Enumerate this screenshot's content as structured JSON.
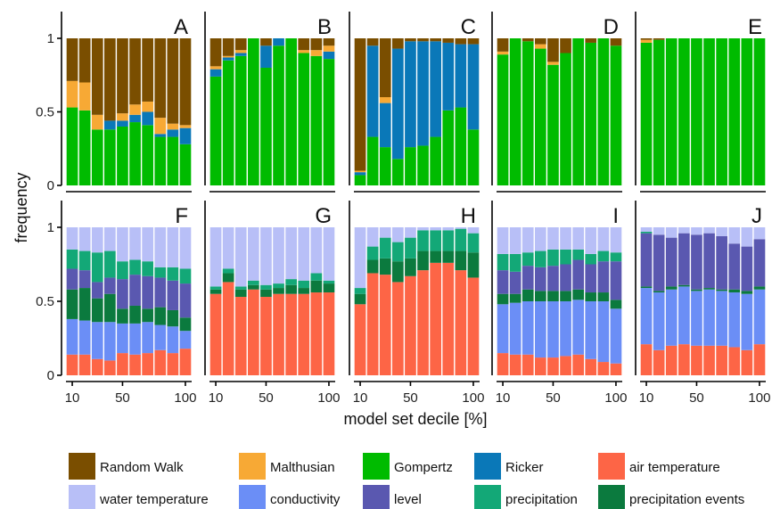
{
  "chart_data": {
    "type": "bar",
    "stacked": true,
    "ylabel": "frequency",
    "xlabel": "model set decile [%]",
    "x": [
      10,
      20,
      30,
      40,
      50,
      60,
      70,
      80,
      90,
      100
    ],
    "x_tick_labels": [
      "10",
      "50",
      "100"
    ],
    "y_tick_labels": [
      "0",
      "0.5",
      "1"
    ],
    "ylim": [
      0,
      1
    ],
    "grid": false,
    "legend_position": "bottom",
    "colors": {
      "Random Walk": "#7a4e00",
      "Malthusian": "#f7a935",
      "Gompertz": "#00bb00",
      "Ricker": "#0a78b8",
      "air temperature": "#fd6546",
      "water temperature": "#b8bff7",
      "conductivity": "#6b8ef6",
      "level": "#5a58b0",
      "precipitation": "#13a877",
      "precipitation events": "#0b7a3e"
    },
    "legend": [
      "Random Walk",
      "Malthusian",
      "Gompertz",
      "Ricker",
      "air temperature",
      "water temperature",
      "conductivity",
      "level",
      "precipitation",
      "precipitation events"
    ],
    "panels": [
      {
        "label": "A",
        "row": 0,
        "series": [
          {
            "name": "Gompertz",
            "values": [
              0.53,
              0.51,
              0.38,
              0.38,
              0.4,
              0.43,
              0.41,
              0.33,
              0.33,
              0.28
            ]
          },
          {
            "name": "Ricker",
            "values": [
              0.0,
              0.0,
              0.0,
              0.06,
              0.04,
              0.05,
              0.09,
              0.02,
              0.05,
              0.11
            ]
          },
          {
            "name": "Malthusian",
            "values": [
              0.18,
              0.19,
              0.1,
              0.0,
              0.05,
              0.07,
              0.07,
              0.11,
              0.04,
              0.02
            ]
          },
          {
            "name": "Random Walk",
            "values": [
              0.29,
              0.3,
              0.52,
              0.56,
              0.51,
              0.45,
              0.43,
              0.54,
              0.58,
              0.59
            ]
          }
        ]
      },
      {
        "label": "B",
        "row": 0,
        "series": [
          {
            "name": "Gompertz",
            "values": [
              0.74,
              0.85,
              0.88,
              1.0,
              0.8,
              0.95,
              1.0,
              0.9,
              0.88,
              0.86
            ]
          },
          {
            "name": "Ricker",
            "values": [
              0.05,
              0.02,
              0.02,
              0.0,
              0.15,
              0.05,
              0.0,
              0.0,
              0.0,
              0.05
            ]
          },
          {
            "name": "Malthusian",
            "values": [
              0.02,
              0.01,
              0.02,
              0.0,
              0.0,
              0.0,
              0.0,
              0.02,
              0.04,
              0.04
            ]
          },
          {
            "name": "Random Walk",
            "values": [
              0.19,
              0.12,
              0.08,
              0.0,
              0.05,
              0.0,
              0.0,
              0.08,
              0.08,
              0.05
            ]
          }
        ]
      },
      {
        "label": "C",
        "row": 0,
        "series": [
          {
            "name": "Gompertz",
            "values": [
              0.07,
              0.33,
              0.26,
              0.18,
              0.26,
              0.27,
              0.33,
              0.51,
              0.53,
              0.38
            ]
          },
          {
            "name": "Ricker",
            "values": [
              0.02,
              0.62,
              0.3,
              0.75,
              0.72,
              0.71,
              0.65,
              0.46,
              0.43,
              0.58
            ]
          },
          {
            "name": "Malthusian",
            "values": [
              0.01,
              0.0,
              0.04,
              0.0,
              0.0,
              0.0,
              0.0,
              0.0,
              0.0,
              0.0
            ]
          },
          {
            "name": "Random Walk",
            "values": [
              0.9,
              0.05,
              0.4,
              0.07,
              0.02,
              0.02,
              0.02,
              0.03,
              0.04,
              0.04
            ]
          }
        ]
      },
      {
        "label": "D",
        "row": 0,
        "series": [
          {
            "name": "Gompertz",
            "values": [
              0.89,
              1.0,
              0.98,
              0.93,
              0.82,
              0.9,
              1.0,
              0.97,
              1.0,
              0.95
            ]
          },
          {
            "name": "Ricker",
            "values": [
              0,
              0,
              0,
              0,
              0,
              0,
              0,
              0,
              0,
              0
            ]
          },
          {
            "name": "Malthusian",
            "values": [
              0.02,
              0.0,
              0.0,
              0.03,
              0.02,
              0.0,
              0.0,
              0.0,
              0.0,
              0.0
            ]
          },
          {
            "name": "Random Walk",
            "values": [
              0.09,
              0.0,
              0.02,
              0.04,
              0.16,
              0.1,
              0.0,
              0.03,
              0.0,
              0.05
            ]
          }
        ]
      },
      {
        "label": "E",
        "row": 0,
        "series": [
          {
            "name": "Gompertz",
            "values": [
              0.97,
              0.99,
              1.0,
              1.0,
              1.0,
              1.0,
              1.0,
              1.0,
              1.0,
              1.0
            ]
          },
          {
            "name": "Ricker",
            "values": [
              0,
              0,
              0,
              0,
              0,
              0,
              0,
              0,
              0,
              0
            ]
          },
          {
            "name": "Malthusian",
            "values": [
              0.02,
              0.0,
              0.0,
              0.0,
              0.0,
              0.0,
              0.0,
              0.0,
              0.0,
              0.0
            ]
          },
          {
            "name": "Random Walk",
            "values": [
              0.01,
              0.01,
              0.0,
              0.0,
              0.0,
              0.0,
              0.0,
              0.0,
              0.0,
              0.0
            ]
          }
        ]
      },
      {
        "label": "F",
        "row": 1,
        "series": [
          {
            "name": "air temperature",
            "values": [
              0.14,
              0.14,
              0.11,
              0.1,
              0.15,
              0.14,
              0.15,
              0.17,
              0.15,
              0.18
            ]
          },
          {
            "name": "conductivity",
            "values": [
              0.24,
              0.23,
              0.25,
              0.26,
              0.2,
              0.21,
              0.21,
              0.17,
              0.18,
              0.12
            ]
          },
          {
            "name": "precipitation events",
            "values": [
              0.2,
              0.22,
              0.16,
              0.19,
              0.1,
              0.12,
              0.09,
              0.12,
              0.11,
              0.09
            ]
          },
          {
            "name": "level",
            "values": [
              0.14,
              0.12,
              0.11,
              0.11,
              0.2,
              0.21,
              0.22,
              0.2,
              0.2,
              0.23
            ]
          },
          {
            "name": "precipitation",
            "values": [
              0.13,
              0.13,
              0.2,
              0.18,
              0.12,
              0.1,
              0.1,
              0.07,
              0.09,
              0.1
            ]
          },
          {
            "name": "water temperature",
            "values": [
              0.15,
              0.16,
              0.17,
              0.16,
              0.23,
              0.22,
              0.23,
              0.27,
              0.27,
              0.28
            ]
          }
        ]
      },
      {
        "label": "G",
        "row": 1,
        "series": [
          {
            "name": "air temperature",
            "values": [
              0.55,
              0.63,
              0.53,
              0.58,
              0.53,
              0.55,
              0.55,
              0.55,
              0.56,
              0.56
            ]
          },
          {
            "name": "conductivity",
            "values": [
              0,
              0,
              0,
              0,
              0,
              0,
              0,
              0,
              0,
              0
            ]
          },
          {
            "name": "precipitation events",
            "values": [
              0.03,
              0.06,
              0.05,
              0.03,
              0.05,
              0.04,
              0.06,
              0.04,
              0.08,
              0.06
            ]
          },
          {
            "name": "level",
            "values": [
              0,
              0,
              0,
              0,
              0,
              0,
              0,
              0,
              0,
              0
            ]
          },
          {
            "name": "precipitation",
            "values": [
              0.02,
              0.03,
              0.02,
              0.03,
              0.03,
              0.03,
              0.04,
              0.05,
              0.05,
              0.02
            ]
          },
          {
            "name": "water temperature",
            "values": [
              0.4,
              0.28,
              0.4,
              0.36,
              0.39,
              0.38,
              0.35,
              0.36,
              0.31,
              0.36
            ]
          }
        ]
      },
      {
        "label": "H",
        "row": 1,
        "series": [
          {
            "name": "air temperature",
            "values": [
              0.48,
              0.69,
              0.68,
              0.63,
              0.67,
              0.71,
              0.76,
              0.76,
              0.71,
              0.66
            ]
          },
          {
            "name": "conductivity",
            "values": [
              0,
              0,
              0,
              0,
              0,
              0,
              0,
              0,
              0,
              0
            ]
          },
          {
            "name": "precipitation events",
            "values": [
              0.07,
              0.09,
              0.11,
              0.14,
              0.12,
              0.13,
              0.08,
              0.08,
              0.13,
              0.17
            ]
          },
          {
            "name": "level",
            "values": [
              0,
              0,
              0,
              0,
              0,
              0,
              0,
              0,
              0,
              0
            ]
          },
          {
            "name": "precipitation",
            "values": [
              0.04,
              0.09,
              0.14,
              0.13,
              0.14,
              0.14,
              0.14,
              0.14,
              0.15,
              0.13
            ]
          },
          {
            "name": "water temperature",
            "values": [
              0.41,
              0.13,
              0.07,
              0.1,
              0.07,
              0.02,
              0.02,
              0.02,
              0.01,
              0.04
            ]
          }
        ]
      },
      {
        "label": "I",
        "row": 1,
        "series": [
          {
            "name": "air temperature",
            "values": [
              0.15,
              0.14,
              0.14,
              0.12,
              0.12,
              0.13,
              0.14,
              0.11,
              0.09,
              0.08
            ]
          },
          {
            "name": "conductivity",
            "values": [
              0.33,
              0.35,
              0.36,
              0.38,
              0.38,
              0.37,
              0.37,
              0.39,
              0.41,
              0.37
            ]
          },
          {
            "name": "precipitation events",
            "values": [
              0.07,
              0.06,
              0.08,
              0.07,
              0.07,
              0.07,
              0.07,
              0.06,
              0.06,
              0.06
            ]
          },
          {
            "name": "level",
            "values": [
              0.16,
              0.15,
              0.16,
              0.16,
              0.17,
              0.18,
              0.2,
              0.19,
              0.21,
              0.26
            ]
          },
          {
            "name": "precipitation",
            "values": [
              0.11,
              0.12,
              0.09,
              0.11,
              0.11,
              0.1,
              0.07,
              0.07,
              0.07,
              0.06
            ]
          },
          {
            "name": "water temperature",
            "values": [
              0.18,
              0.18,
              0.17,
              0.16,
              0.15,
              0.15,
              0.15,
              0.18,
              0.16,
              0.17
            ]
          }
        ]
      },
      {
        "label": "J",
        "row": 1,
        "series": [
          {
            "name": "air temperature",
            "values": [
              0.21,
              0.17,
              0.2,
              0.21,
              0.2,
              0.2,
              0.2,
              0.19,
              0.17,
              0.21
            ]
          },
          {
            "name": "conductivity",
            "values": [
              0.38,
              0.39,
              0.38,
              0.39,
              0.37,
              0.38,
              0.37,
              0.37,
              0.38,
              0.37
            ]
          },
          {
            "name": "precipitation events",
            "values": [
              0.01,
              0.01,
              0.02,
              0.01,
              0.01,
              0.01,
              0.01,
              0.02,
              0.02,
              0.02
            ]
          },
          {
            "name": "level",
            "values": [
              0.36,
              0.38,
              0.33,
              0.35,
              0.37,
              0.37,
              0.36,
              0.31,
              0.3,
              0.32
            ]
          },
          {
            "name": "precipitation",
            "values": [
              0.01,
              0.0,
              0.0,
              0.0,
              0.0,
              0.0,
              0.0,
              0.0,
              0.0,
              0.0
            ]
          },
          {
            "name": "water temperature",
            "values": [
              0.03,
              0.05,
              0.07,
              0.04,
              0.05,
              0.04,
              0.06,
              0.11,
              0.13,
              0.08
            ]
          }
        ]
      }
    ]
  }
}
